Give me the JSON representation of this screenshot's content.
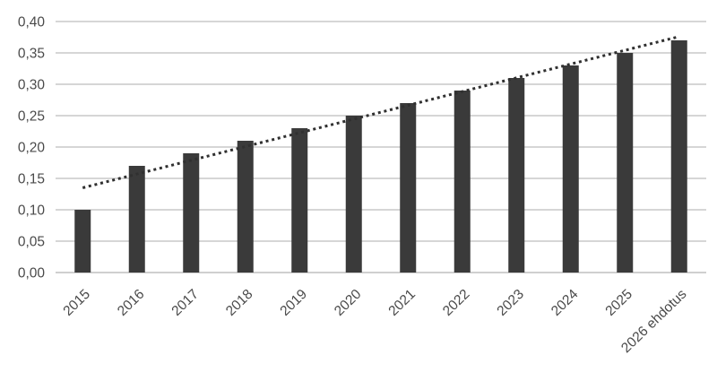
{
  "chart_data": {
    "type": "bar",
    "categories": [
      "2015",
      "2016",
      "2017",
      "2018",
      "2019",
      "2020",
      "2021",
      "2022",
      "2023",
      "2024",
      "2025",
      "2026 ehdotus"
    ],
    "values": [
      0.1,
      0.17,
      0.19,
      0.21,
      0.23,
      0.25,
      0.27,
      0.29,
      0.31,
      0.33,
      0.35,
      0.37
    ],
    "ytick_labels": [
      "0,00",
      "0,05",
      "0,10",
      "0,15",
      "0,20",
      "0,25",
      "0,30",
      "0,35",
      "0,40"
    ],
    "ytick_values": [
      0.0,
      0.05,
      0.1,
      0.15,
      0.2,
      0.25,
      0.3,
      0.35,
      0.4
    ],
    "ylim": [
      0,
      0.4
    ],
    "grid": true,
    "legend": false,
    "trendline": {
      "kind": "linear",
      "line_style": "dotted",
      "start_value": 0.135,
      "end_value": 0.376
    },
    "colors": {
      "bar": "#3a3a3a",
      "gridline": "#c9c9c9",
      "axis_line": "#bfbfbf",
      "text": "#4a4a4a",
      "trendline": "#303030",
      "background": "#ffffff"
    }
  }
}
